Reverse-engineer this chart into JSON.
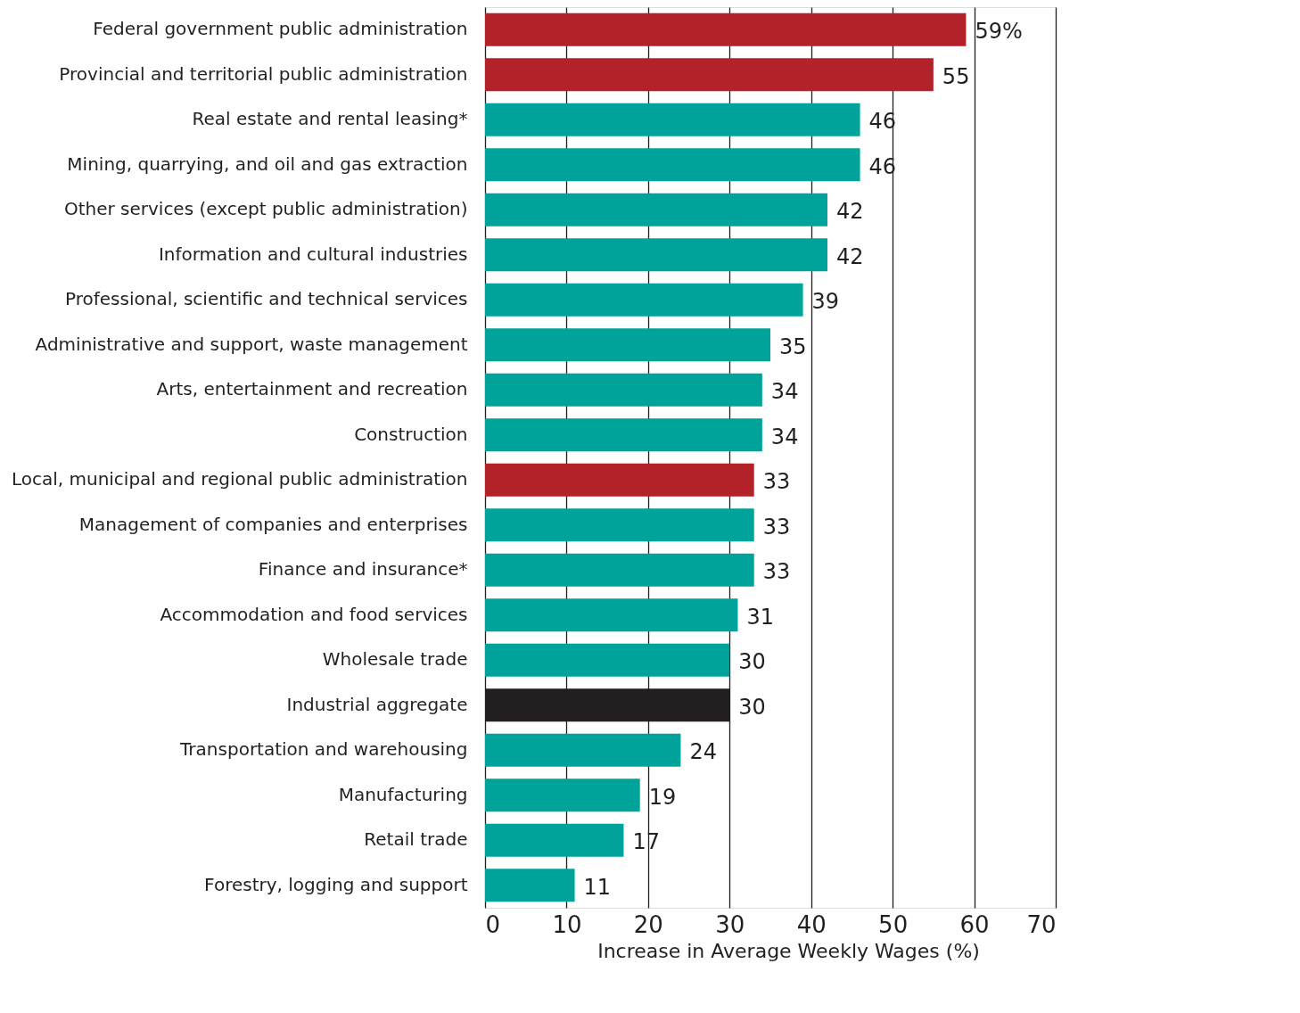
{
  "chart_data": {
    "type": "bar",
    "orientation": "horizontal",
    "xlabel": "Increase in Average Weekly Wages (%)",
    "categories": [
      "Federal government public administration",
      "Provincial and territorial public administration",
      "Real estate and rental leasing*",
      "Mining, quarrying, and oil and gas extraction",
      "Other services (except public administration)",
      "Information and cultural industries",
      "Professional, scientific and technical services",
      "Administrative and support, waste management",
      "Arts, entertainment and recreation",
      "Construction",
      "Local, municipal and regional  public administration",
      "Management of companies and enterprises",
      "Finance and insurance*",
      "Accommodation and food services",
      "Wholesale trade",
      "Industrial aggregate",
      "Transportation and warehousing",
      "Manufacturing",
      "Retail trade",
      "Forestry, logging and support"
    ],
    "values": [
      59,
      55,
      46,
      46,
      42,
      42,
      39,
      35,
      34,
      34,
      33,
      33,
      33,
      31,
      30,
      30,
      24,
      19,
      17,
      11
    ],
    "value_labels": [
      "59%",
      "55",
      "46",
      "46",
      "42",
      "42",
      "39",
      "35",
      "34",
      "34",
      "33",
      "33",
      "33",
      "31",
      "30",
      "30",
      "24",
      "19",
      "17",
      "11"
    ],
    "colors": [
      "#b22228",
      "#b22228",
      "#00a39a",
      "#00a39a",
      "#00a39a",
      "#00a39a",
      "#00a39a",
      "#00a39a",
      "#00a39a",
      "#00a39a",
      "#b22228",
      "#00a39a",
      "#00a39a",
      "#00a39a",
      "#00a39a",
      "#231f20",
      "#00a39a",
      "#00a39a",
      "#00a39a",
      "#00a39a"
    ],
    "xlim": [
      0,
      70
    ],
    "xticks": [
      0,
      10,
      20,
      30,
      40,
      50,
      60,
      70
    ],
    "grid": "x"
  }
}
